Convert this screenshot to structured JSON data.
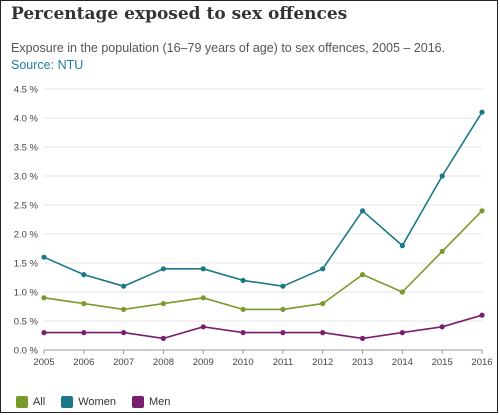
{
  "chart_data": {
    "type": "line",
    "title": "Percentage exposed to sex offences",
    "subtitle": "Exposure in the population (16–79 years of age) to sex offences, 2005 – 2016.",
    "source_label": "Source:",
    "source_link": "NTU",
    "x": [
      "2005",
      "2006",
      "2007",
      "2008",
      "2009",
      "2010",
      "2011",
      "2012",
      "2013",
      "2014",
      "2015",
      "2016"
    ],
    "ylim": [
      0,
      4.5
    ],
    "y_ticks": [
      0.0,
      0.5,
      1.0,
      1.5,
      2.0,
      2.5,
      3.0,
      3.5,
      4.0,
      4.5
    ],
    "y_tick_labels": [
      "0.0 %",
      "0.5 %",
      "1.0 %",
      "1.5 %",
      "2.0 %",
      "2.5 %",
      "3.0 %",
      "3.5 %",
      "4.0 %",
      "4.5 %"
    ],
    "grid": true,
    "legend_position": "bottom-left",
    "series": [
      {
        "name": "All",
        "color": "#7a9a2d",
        "values": [
          0.9,
          0.8,
          0.7,
          0.8,
          0.9,
          0.7,
          0.7,
          0.8,
          1.3,
          1.0,
          1.7,
          2.4
        ]
      },
      {
        "name": "Women",
        "color": "#1a7888",
        "values": [
          1.6,
          1.3,
          1.1,
          1.4,
          1.4,
          1.2,
          1.1,
          1.4,
          2.4,
          1.8,
          3.0,
          4.1
        ]
      },
      {
        "name": "Men",
        "color": "#7a1e6e",
        "values": [
          0.3,
          0.3,
          0.3,
          0.2,
          0.4,
          0.3,
          0.3,
          0.3,
          0.2,
          0.3,
          0.4,
          0.6
        ]
      }
    ]
  }
}
